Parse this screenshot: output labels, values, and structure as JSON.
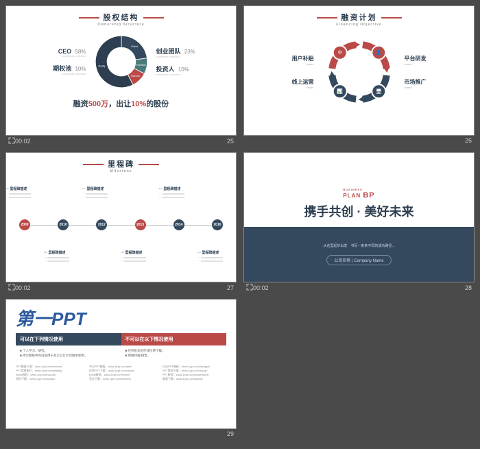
{
  "colors": {
    "navy": "#34495e",
    "red": "#b94a48",
    "teal": "#4a7a7a",
    "blue": "#2c5aa0",
    "gray_bg": "#4a4a4a",
    "text_dark": "#2c3e50",
    "text_muted": "#888888"
  },
  "slide25": {
    "number": "25",
    "time": "00:02",
    "title": "股权结构",
    "subtitle": "Ownership Structure",
    "donut": {
      "segments": [
        {
          "label": "Robot",
          "value": 23,
          "color": "#34495e"
        },
        {
          "label": "Rambus",
          "value": 10,
          "color": "#4a7a7a"
        },
        {
          "label": "Razorla",
          "value": 10,
          "color": "#b94a48"
        },
        {
          "label": "Really",
          "value": 58,
          "color": "#2c3e50"
        }
      ],
      "inner_radius": 0.55
    },
    "left_items": [
      {
        "name": "CEO",
        "pct": "58%",
        "desc": "xxxxxxxxx xxxxxxxx"
      },
      {
        "name": "期权池",
        "pct": "10%",
        "desc": "xxxxxxxxx xxxxxxxx"
      }
    ],
    "right_items": [
      {
        "name": "创业团队",
        "pct": "23%",
        "desc": "xxxxxxxxx xxxxxxxx"
      },
      {
        "name": "投资人",
        "pct": "10%",
        "desc": "xxxxxxxxx xxxxxxxx"
      }
    ],
    "footer_pre": "融资",
    "footer_amount": "500万",
    "footer_mid": "，出让",
    "footer_pct": "10%",
    "footer_post": "的股份"
  },
  "slide26": {
    "number": "26",
    "time": "00:02",
    "title": "融资计划",
    "subtitle": "Financing Objective",
    "left_items": [
      {
        "name": "用户补贴",
        "desc": "xxxxx"
      },
      {
        "name": "线上运营",
        "desc": "xxxxx"
      }
    ],
    "right_items": [
      {
        "name": "平台研发",
        "desc": "xxxxx"
      },
      {
        "name": "市场推广",
        "desc": "xxxxx"
      }
    ],
    "cycle": {
      "arcs": [
        {
          "color": "#b94a48"
        },
        {
          "color": "#34495e"
        },
        {
          "color": "#34495e"
        },
        {
          "color": "#b94a48"
        }
      ],
      "nodes": [
        {
          "angle": 45,
          "color": "#b94a48",
          "icon": "person"
        },
        {
          "angle": 135,
          "color": "#34495e",
          "icon": "monitor"
        },
        {
          "angle": 225,
          "color": "#34495e",
          "icon": "chart"
        },
        {
          "angle": 315,
          "color": "#b94a48",
          "icon": "gear"
        }
      ]
    }
  },
  "slide27": {
    "number": "27",
    "time": "00:02",
    "title": "里程碑",
    "subtitle": "Milestone",
    "timeline": {
      "nodes": [
        {
          "year": "2009",
          "color": "#b94a48",
          "pos": "top"
        },
        {
          "year": "2010",
          "color": "#34495e",
          "pos": "bottom"
        },
        {
          "year": "2012",
          "color": "#34495e",
          "pos": "top"
        },
        {
          "year": "2013",
          "color": "#b94a48",
          "pos": "bottom"
        },
        {
          "year": "2014",
          "color": "#34495e",
          "pos": "top"
        },
        {
          "year": "2016",
          "color": "#34495e",
          "pos": "bottom"
        }
      ],
      "item_heading": "···  里程碑描述",
      "item_line": "···  xxxxxxxxxxxxxxxx"
    }
  },
  "slide28": {
    "number": "28",
    "time": "00:02",
    "plan_label": "BUSINESS",
    "plan_word": "PLAN",
    "plan_bp": "BP",
    "title": "携手共创 · 美好未来",
    "subtitle": "从这里起步出发　书写一条条不同的成功路径...",
    "button": "公司名称 | Company Name"
  },
  "slide29": {
    "number": "29",
    "logo_cn": "第一",
    "logo_en": "PPT",
    "col_left": {
      "header": "可以在下列情况使用",
      "color": "#34495e",
      "items": [
        "■ 个人学习、研究。",
        "■ 拷贝模板中的内容用于其它幻灯片母版中使用。"
      ]
    },
    "col_right": {
      "header": "不可以在以下情况使用",
      "color": "#b94a48",
      "items": [
        "■ 任何形式的在线付费下载。",
        "■ 网络转载/销售。"
      ]
    },
    "links": [
      [
        "PPT模板下载：www.1ppt.com/moban/",
        "节日PPT模板：www.1ppt.com/jieri/",
        "行业PPT模板：www.1ppt.com/hangye/"
      ],
      [
        "PPT背景图片：www.1ppt.com/beijing/",
        "优秀PPT下载：www.1ppt.com/xiazai/",
        "PPT素材下载：www.1ppt.com/sucai/"
      ],
      [
        "Word教程：www.1ppt.com/word/",
        "Excel教程：www.1ppt.com/excel/",
        "PPT教程：www.1ppt.com/powerpoint/"
      ],
      [
        "资料下载：www.1ppt.com/ziliao/",
        "范文下载：www.1ppt.com/fanwen/",
        "教案下载：www.1ppt.com/jiaoan/"
      ]
    ]
  }
}
